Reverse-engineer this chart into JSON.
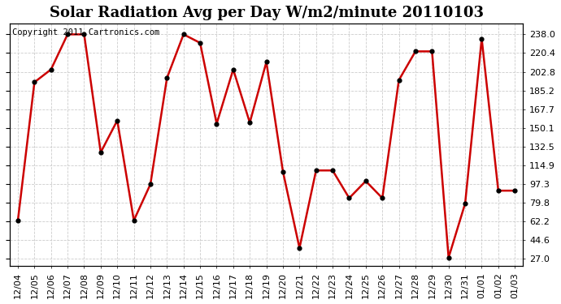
{
  "title": "Solar Radiation Avg per Day W/m2/minute 20110103",
  "copyright_text": "Copyright 2011 Cartronics.com",
  "x_labels": [
    "12/04",
    "12/05",
    "12/06",
    "12/07",
    "12/08",
    "12/09",
    "12/10",
    "12/11",
    "12/12",
    "12/13",
    "12/14",
    "12/15",
    "12/16",
    "12/17",
    "12/18",
    "12/19",
    "12/20",
    "12/21",
    "12/22",
    "12/23",
    "12/24",
    "12/25",
    "12/26",
    "12/27",
    "12/28",
    "12/29",
    "12/30",
    "12/31",
    "01/01",
    "01/02",
    "01/03"
  ],
  "y_values": [
    63,
    193,
    205,
    238,
    238,
    127,
    157,
    63,
    97,
    197,
    238,
    230,
    154,
    205,
    155,
    212,
    109,
    37,
    110,
    110,
    84,
    100,
    84,
    195,
    222,
    222,
    28,
    79,
    234,
    91,
    91
  ],
  "y_ticks": [
    27.0,
    44.6,
    62.2,
    79.8,
    97.3,
    114.9,
    132.5,
    150.1,
    167.7,
    185.2,
    202.8,
    220.4,
    238.0
  ],
  "line_color": "#cc0000",
  "marker_color": "#000000",
  "fig_bg_color": "#ffffff",
  "plot_bg_color": "#ffffff",
  "grid_color": "#cccccc",
  "title_fontsize": 13,
  "copyright_fontsize": 7.5,
  "tick_fontsize": 8,
  "ylim": [
    20,
    248
  ],
  "xlim": [
    -0.5,
    30.5
  ]
}
